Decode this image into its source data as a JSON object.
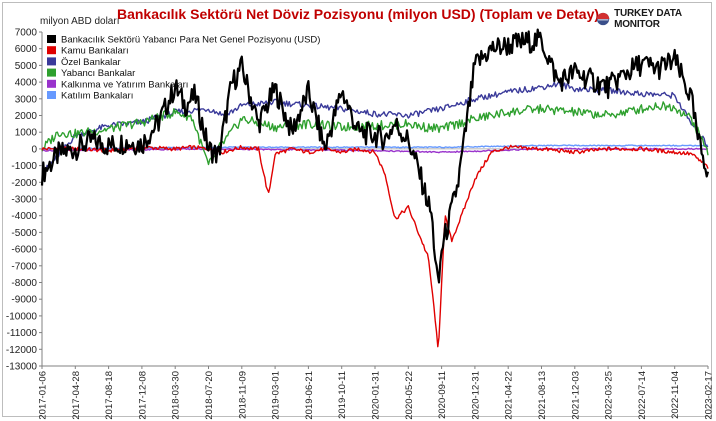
{
  "chart_data": {
    "type": "line",
    "title": "Bankacılık Sektörü Net Döviz Pozisyonu (milyon USD) (Toplam ve Detay)",
    "unit_label": "milyon ABD doları",
    "brand": "TURKEY DATA MONITOR",
    "ylim": [
      -13000,
      7000
    ],
    "y_ticks": [
      7000,
      6000,
      5000,
      4000,
      3000,
      2000,
      1000,
      0,
      -1000,
      -2000,
      -3000,
      -4000,
      -5000,
      -6000,
      -7000,
      -8000,
      -9000,
      -10000,
      -11000,
      -12000,
      -13000
    ],
    "x_ticks": [
      "2017-01-06",
      "2017-04-28",
      "2017-08-18",
      "2017-12-08",
      "2018-03-30",
      "2018-07-20",
      "2018-11-09",
      "2019-03-01",
      "2019-06-21",
      "2019-10-11",
      "2020-01-31",
      "2020-05-22",
      "2020-09-11",
      "2020-12-31",
      "2021-04-22",
      "2021-08-13",
      "2021-12-03",
      "2022-03-25",
      "2022-07-14",
      "2022-11-04",
      "2023-02-17"
    ],
    "grid": false,
    "legend_position": "top-left",
    "series": [
      {
        "name": "Bankacılık Sektörü Yabancı Para Net Genel Pozisyonu (USD)",
        "color": "#000000",
        "x_index": [
          0,
          0.5,
          1,
          1.5,
          2,
          2.5,
          3,
          3.5,
          4,
          4.3,
          4.6,
          5,
          5.3,
          5.7,
          6,
          6.5,
          7,
          7.5,
          8,
          8.5,
          9,
          9.5,
          10,
          10.3,
          10.6,
          11,
          11.3,
          11.7,
          11.9,
          12,
          12.2,
          12.5,
          13,
          13.5,
          14,
          14.5,
          15,
          15.5,
          16,
          16.5,
          17,
          17.5,
          18,
          18.5,
          19,
          19.5,
          19.7,
          20
        ],
        "values": [
          -1500,
          -300,
          0,
          500,
          200,
          400,
          300,
          1600,
          3700,
          2600,
          3200,
          0,
          -400,
          3900,
          4900,
          1500,
          3600,
          1000,
          3400,
          0,
          3500,
          1000,
          800,
          600,
          1500,
          500,
          -1200,
          -4000,
          -8500,
          -6000,
          -4500,
          -2000,
          5000,
          6000,
          6200,
          6400,
          6500,
          4000,
          4600,
          4100,
          3700,
          4500,
          5100,
          4800,
          5300,
          3000,
          500,
          -1300
        ]
      },
      {
        "name": "Kamu Bankaları",
        "color": "#e00000",
        "x_index": [
          0,
          1,
          2,
          3,
          4,
          4.5,
          5,
          5.4,
          6,
          6.5,
          6.8,
          7,
          7.5,
          8,
          8.5,
          9,
          9.5,
          10,
          10.3,
          10.6,
          11,
          11.3,
          11.6,
          11.8,
          11.9,
          12,
          12.1,
          12.3,
          12.6,
          13,
          13.5,
          14,
          15,
          16,
          17,
          18,
          19,
          19.5,
          20
        ],
        "values": [
          0,
          0,
          -100,
          100,
          0,
          100,
          0,
          -200,
          100,
          0,
          -2800,
          -300,
          0,
          -200,
          0,
          -200,
          0,
          -200,
          -1500,
          -4200,
          -3500,
          -5000,
          -6500,
          -10000,
          -12300,
          -8000,
          -4000,
          -5500,
          -4000,
          -1800,
          -200,
          100,
          0,
          -200,
          0,
          0,
          -200,
          -300,
          -1100
        ]
      },
      {
        "name": "Özel Bankalar",
        "color": "#3a3a9a",
        "x_index": [
          0,
          1,
          2,
          3,
          4,
          5,
          5.5,
          6,
          7,
          8,
          9,
          10,
          11,
          12,
          13,
          14,
          15,
          15.5,
          16,
          17,
          18,
          19,
          19.5,
          20
        ],
        "values": [
          -1500,
          800,
          1400,
          1600,
          2200,
          2400,
          2000,
          2600,
          2800,
          2600,
          2400,
          2100,
          2000,
          2400,
          3000,
          3400,
          3700,
          3900,
          3600,
          3500,
          3300,
          3200,
          1500,
          200
        ]
      },
      {
        "name": "Yabancı Bankalar",
        "color": "#2ea02e",
        "x_index": [
          0,
          0.5,
          1,
          2,
          3,
          4,
          4.5,
          5,
          5.3,
          6,
          7,
          8,
          9,
          10,
          11,
          11.5,
          12,
          13,
          14,
          15,
          16,
          17,
          18,
          18.5,
          19,
          19.5,
          20
        ],
        "values": [
          0,
          1000,
          900,
          1200,
          1600,
          2200,
          1900,
          -1000,
          0,
          1800,
          1300,
          1500,
          1300,
          1400,
          1500,
          1300,
          1200,
          1800,
          2200,
          2400,
          2200,
          2000,
          2400,
          2600,
          2500,
          1800,
          -200
        ]
      },
      {
        "name": "Kalkınma ve Yatırım Bankaları",
        "color": "#9933cc",
        "x_index": [
          0,
          5,
          10,
          12,
          15,
          20
        ],
        "values": [
          -100,
          0,
          -100,
          -200,
          0,
          0
        ]
      },
      {
        "name": "Katılım Bankaları",
        "color": "#6699ff",
        "x_index": [
          0,
          5,
          10,
          12,
          15,
          20
        ],
        "values": [
          0,
          100,
          100,
          100,
          200,
          200
        ]
      }
    ]
  }
}
